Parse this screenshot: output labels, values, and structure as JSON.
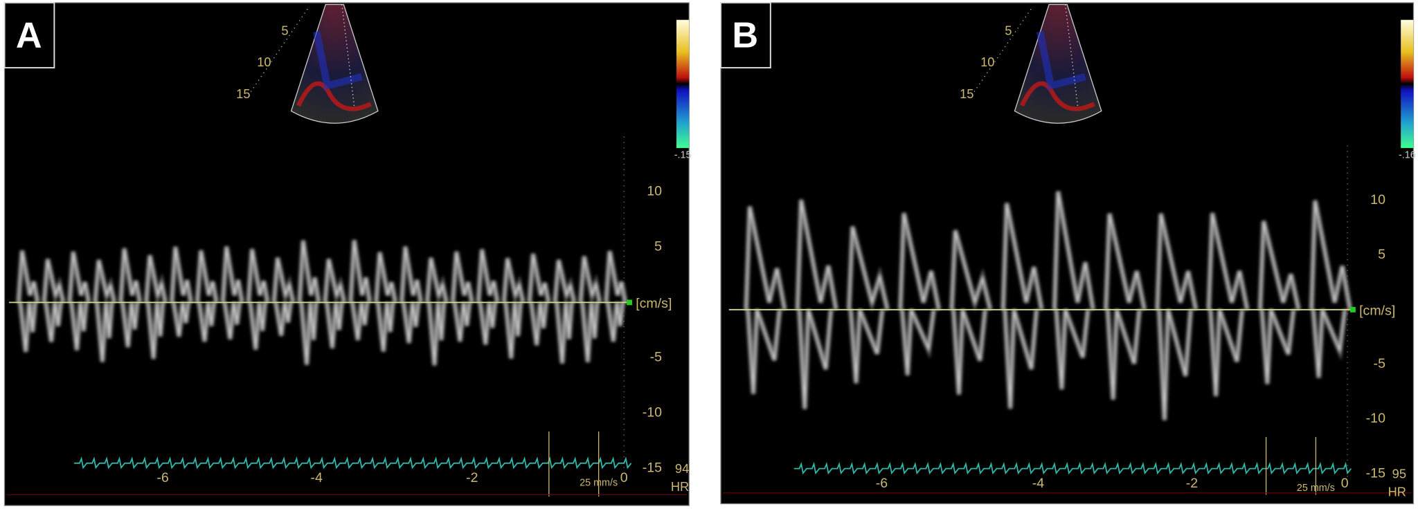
{
  "panels": [
    {
      "label": "A",
      "depth_labels": [
        "5",
        "10",
        "15"
      ],
      "color_scale_label": "-.15",
      "velocity_ticks": [
        "10",
        "5",
        "-5",
        "-10",
        "-15"
      ],
      "velocity_unit": "[cm/s]",
      "time_ticks": [
        "-6",
        "-4",
        "-2",
        "0"
      ],
      "sweep_speed": "25 mm/s",
      "heart_rate": "94",
      "heart_rate_label": "HR"
    },
    {
      "label": "B",
      "depth_labels": [
        "5",
        "10",
        "15"
      ],
      "color_scale_label": "-.16",
      "velocity_ticks": [
        "10",
        "5",
        "-5",
        "-10",
        "-15"
      ],
      "velocity_unit": "[cm/s]",
      "time_ticks": [
        "-6",
        "-4",
        "-2",
        "0"
      ],
      "sweep_speed": "25 mm/s",
      "heart_rate": "95",
      "heart_rate_label": "HR"
    }
  ]
}
